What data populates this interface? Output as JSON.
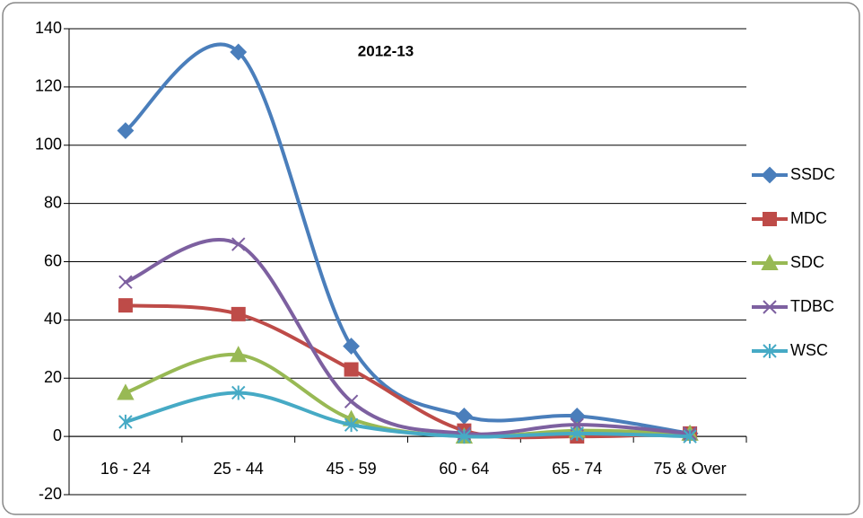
{
  "chart_data": {
    "type": "line",
    "title": "2012-13",
    "categories": [
      "16 - 24",
      "25 - 44",
      "45 - 59",
      "60 - 64",
      "65 - 74",
      "75 & Over"
    ],
    "series": [
      {
        "name": "SSDC",
        "color": "#4a7ebb",
        "marker": "diamond",
        "values": [
          105,
          132,
          31,
          7,
          7,
          1
        ]
      },
      {
        "name": "MDC",
        "color": "#be4b48",
        "marker": "square",
        "values": [
          45,
          42,
          23,
          2,
          0,
          1
        ]
      },
      {
        "name": "SDC",
        "color": "#98b954",
        "marker": "triangle",
        "values": [
          15,
          28,
          6,
          0,
          2,
          1
        ]
      },
      {
        "name": "TDBC",
        "color": "#7d60a0",
        "marker": "x",
        "values": [
          53,
          66,
          12,
          1,
          4,
          1
        ]
      },
      {
        "name": "WSC",
        "color": "#46aac5",
        "marker": "star",
        "values": [
          5,
          15,
          4,
          0,
          1,
          0
        ]
      }
    ],
    "ylim": [
      -20,
      140
    ],
    "yticks": [
      -20,
      0,
      20,
      40,
      60,
      80,
      100,
      120,
      140
    ],
    "grid": true,
    "smooth": true,
    "legend": "right"
  }
}
